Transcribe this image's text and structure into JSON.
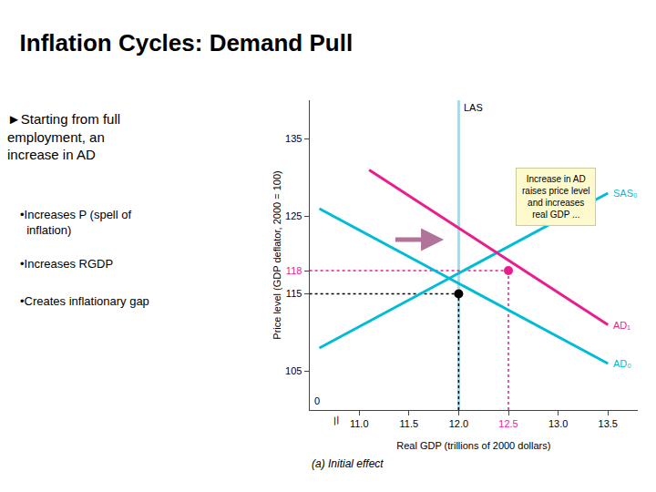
{
  "chart_data": {
    "type": "line",
    "title": "Inflation Cycles: Demand Pull",
    "text_panel": {
      "header": "►Starting from full\nemployment, an\nincrease in AD",
      "bullets": [
        "•Increases P (spell of\n  inflation)",
        "•Increases RGDP",
        "•Creates inflationary gap"
      ]
    },
    "caption": "(a) Initial effect",
    "xlabel": "Real GDP (trillions of 2000 dollars)",
    "ylabel": "Price level (GDP deflator, 2000 = 100)",
    "xlim": [
      10.5,
      13.8
    ],
    "ylim": [
      100,
      140
    ],
    "xticks": [
      {
        "value": 11.0,
        "label": "11.0"
      },
      11.5,
      {
        "value": 12.0,
        "label": "12.0"
      },
      {
        "value": 12.5,
        "label": "12.5",
        "color": "#e91e8c"
      },
      {
        "value": 13.0,
        "label": "13.0"
      },
      13.5
    ],
    "yticks": [
      105,
      115,
      {
        "value": 118,
        "label": "118",
        "color": "#e91e8c"
      },
      125,
      135
    ],
    "grid": false,
    "origin_label": "0",
    "break_mark": {
      "text": "//",
      "x": 10.77
    },
    "series": [
      {
        "type": "line",
        "label": "LAS",
        "label_color": "#000000",
        "color": "#add8e6",
        "x": [
          12.0,
          12.0
        ],
        "values": [
          100,
          140
        ]
      },
      {
        "type": "line",
        "line_style": "dotted",
        "color": "#000000",
        "x": [
          10.5,
          12.0
        ],
        "values": [
          115,
          115
        ]
      },
      {
        "type": "line",
        "line_style": "dotted",
        "color": "#e91e8c",
        "x": [
          10.5,
          12.5
        ],
        "values": [
          118,
          118
        ]
      },
      {
        "type": "line",
        "line_style": "dotted",
        "color": "#000000",
        "x": [
          12.0,
          12.0
        ],
        "values": [
          100,
          115
        ]
      },
      {
        "type": "line",
        "line_style": "dotted",
        "color": "#e91e8c",
        "x": [
          12.5,
          12.5
        ],
        "values": [
          100,
          118
        ]
      },
      {
        "type": "line",
        "label": "SAS₀",
        "color": "#00bcd4",
        "x": [
          10.6,
          13.5
        ],
        "values": [
          108,
          128
        ]
      },
      {
        "type": "line",
        "label": "AD₀",
        "color": "#00bcd4",
        "x": [
          10.6,
          13.5
        ],
        "values": [
          126,
          106
        ]
      },
      {
        "type": "line",
        "label": "AD₁",
        "color": "#e91e8c",
        "x": [
          11.1,
          13.5
        ],
        "values": [
          131,
          111
        ]
      },
      {
        "type": "scatter",
        "marker": "circle",
        "color": "#000000",
        "x": [
          12.0
        ],
        "values": [
          115
        ]
      },
      {
        "type": "scatter",
        "marker": "circle",
        "color": "#e91e8c",
        "x": [
          12.5
        ],
        "values": [
          118
        ]
      }
    ],
    "arrow": {
      "x_start": 11.35,
      "x_end": 11.85,
      "y": 122,
      "color": "#b0739a"
    },
    "note": {
      "text": "Increase in AD\nraises price level\nand increases\nreal GDP ...",
      "x": 12.975,
      "y": 127.5,
      "color": "#fffacd",
      "edge_color": "#cccc99"
    }
  }
}
